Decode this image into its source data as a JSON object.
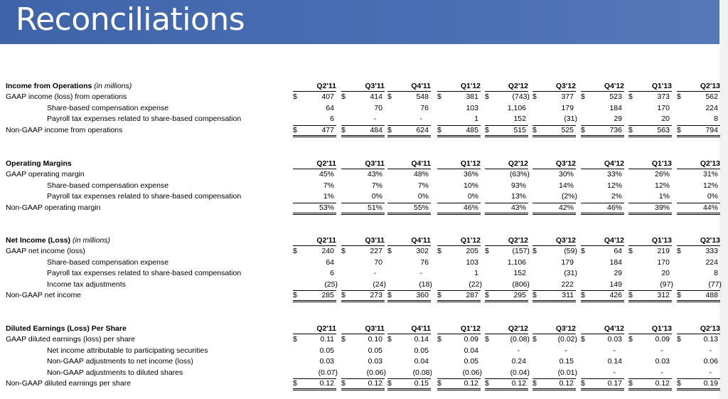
{
  "title": "Reconciliations",
  "periods": [
    "Q2'11",
    "Q3'11",
    "Q4'11",
    "Q1'12",
    "Q2'12",
    "Q3'12",
    "Q4'12",
    "Q1'13",
    "Q2'13"
  ],
  "sections": [
    {
      "heading": "Income from Operations",
      "subheading": "(in millions)",
      "rows": [
        {
          "label": "GAAP income (loss) from operations",
          "indent": false,
          "dollar": true,
          "values": [
            "407",
            "414",
            "548",
            "381",
            "(743)",
            "377",
            "523",
            "373",
            "562"
          ]
        },
        {
          "label": "Share-based compensation expense",
          "indent": true,
          "dollar": false,
          "values": [
            "64",
            "70",
            "76",
            "103",
            "1,106",
            "179",
            "184",
            "170",
            "224"
          ]
        },
        {
          "label": "Payroll tax expenses related to share-based compensation",
          "indent": true,
          "dollar": false,
          "values": [
            "6",
            "-",
            "-",
            "1",
            "152",
            "(31)",
            "29",
            "20",
            "8"
          ]
        },
        {
          "label": "Non-GAAP income from operations",
          "indent": false,
          "dollar": true,
          "total": true,
          "values": [
            "477",
            "484",
            "624",
            "485",
            "515",
            "525",
            "736",
            "563",
            "794"
          ]
        }
      ]
    },
    {
      "heading": "Operating Margins",
      "subheading": "",
      "rows": [
        {
          "label": "GAAP operating margin",
          "indent": false,
          "dollar": false,
          "values": [
            "45%",
            "43%",
            "48%",
            "36%",
            "(63%)",
            "30%",
            "33%",
            "26%",
            "31%"
          ]
        },
        {
          "label": "Share-based compensation expense",
          "indent": true,
          "dollar": false,
          "values": [
            "7%",
            "7%",
            "7%",
            "10%",
            "93%",
            "14%",
            "12%",
            "12%",
            "12%"
          ]
        },
        {
          "label": "Payroll tax expenses related to share-based compensation",
          "indent": true,
          "dollar": false,
          "values": [
            "1%",
            "0%",
            "0%",
            "0%",
            "13%",
            "(2%)",
            "2%",
            "1%",
            "0%"
          ]
        },
        {
          "label": "Non-GAAP operating margin",
          "indent": false,
          "dollar": false,
          "total": true,
          "values": [
            "53%",
            "51%",
            "55%",
            "46%",
            "43%",
            "42%",
            "46%",
            "39%",
            "44%"
          ]
        }
      ]
    },
    {
      "heading": "Net Income (Loss)",
      "subheading": "(in millions)",
      "rows": [
        {
          "label": "GAAP net income (loss)",
          "indent": false,
          "dollar": true,
          "values": [
            "240",
            "227",
            "302",
            "205",
            "(157)",
            "(59)",
            "64",
            "219",
            "333"
          ]
        },
        {
          "label": "Share-based compensation expense",
          "indent": true,
          "dollar": false,
          "values": [
            "64",
            "70",
            "76",
            "103",
            "1,106",
            "179",
            "184",
            "170",
            "224"
          ]
        },
        {
          "label": "Payroll tax expenses related to share-based compensation",
          "indent": true,
          "dollar": false,
          "values": [
            "6",
            "-",
            "-",
            "1",
            "152",
            "(31)",
            "29",
            "20",
            "8"
          ]
        },
        {
          "label": "Income tax adjustments",
          "indent": true,
          "dollar": false,
          "values": [
            "(25)",
            "(24)",
            "(18)",
            "(22)",
            "(806)",
            "222",
            "149",
            "(97)",
            "(77)"
          ]
        },
        {
          "label": "Non-GAAP net income",
          "indent": false,
          "dollar": true,
          "total": true,
          "values": [
            "285",
            "273",
            "360",
            "287",
            "295",
            "311",
            "426",
            "312",
            "488"
          ]
        }
      ]
    },
    {
      "heading": "Diluted Earnings (Loss) Per Share",
      "subheading": "",
      "rows": [
        {
          "label": "GAAP diluted earnings (loss) per share",
          "indent": false,
          "dollar": true,
          "values": [
            "0.11",
            "0.10",
            "0.14",
            "0.09",
            "(0.08)",
            "(0.02)",
            "0.03",
            "0.09",
            "0.13"
          ]
        },
        {
          "label": "Net income attributable to participating securities",
          "indent": true,
          "dollar": false,
          "values": [
            "0.05",
            "0.05",
            "0.05",
            "0.04",
            "-",
            "-",
            "-",
            "-",
            "-"
          ]
        },
        {
          "label": "Non-GAAP adjustments to net income (loss)",
          "indent": true,
          "dollar": false,
          "values": [
            "0.03",
            "0.03",
            "0.04",
            "0.05",
            "0.24",
            "0.15",
            "0.14",
            "0.03",
            "0.06"
          ]
        },
        {
          "label": "Non-GAAP adjustments to diluted shares",
          "indent": true,
          "dollar": false,
          "values": [
            "(0.07)",
            "(0.06)",
            "(0.08)",
            "(0.06)",
            "(0.04)",
            "(0.01)",
            "-",
            "-",
            "-"
          ]
        },
        {
          "label": "Non-GAAP diluted earnings per share",
          "indent": false,
          "dollar": true,
          "total": true,
          "values": [
            "0.12",
            "0.12",
            "0.15",
            "0.12",
            "0.12",
            "0.12",
            "0.17",
            "0.12",
            "0.19"
          ]
        }
      ]
    }
  ]
}
